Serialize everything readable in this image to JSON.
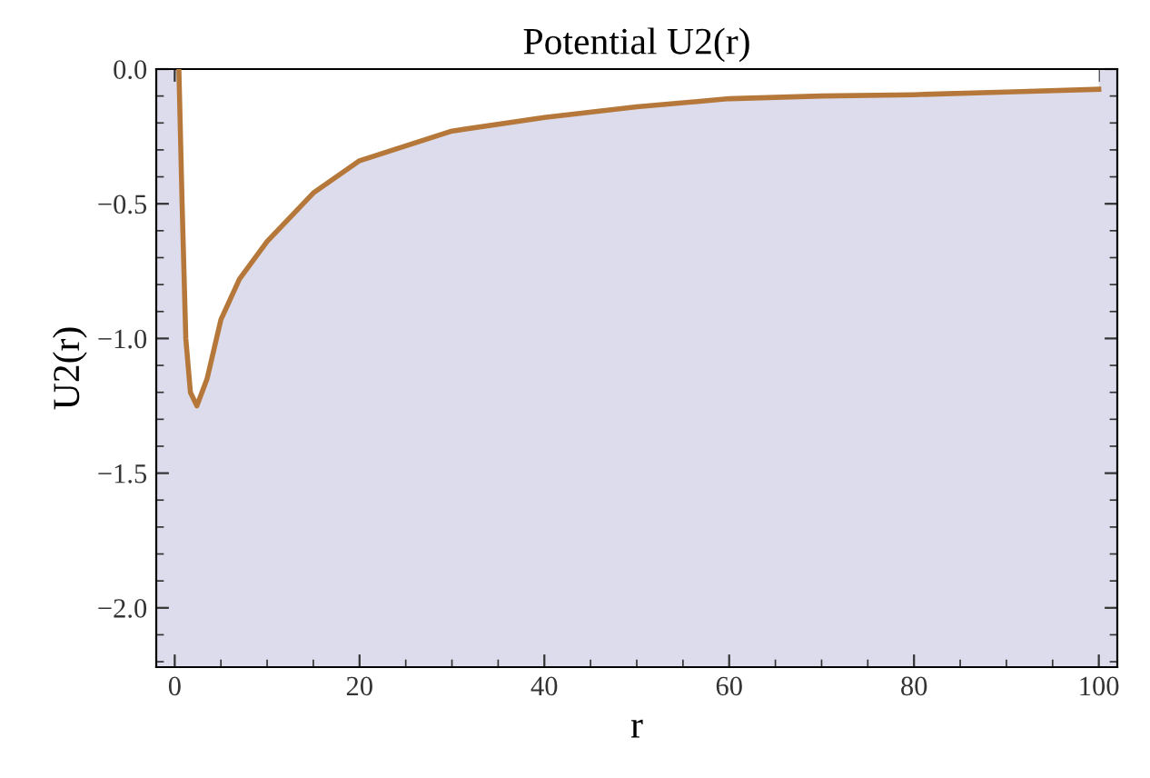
{
  "chart_data": {
    "type": "area",
    "title": "Potential U2(r)",
    "xlabel": "r",
    "ylabel": "U2(r)",
    "x": [
      0.45,
      0.8,
      1.2,
      1.7,
      2.4,
      3.5,
      5,
      7,
      10,
      15,
      20,
      30,
      40,
      50,
      60,
      70,
      80,
      90,
      100
    ],
    "bands": [
      {
        "axis": "y",
        "from": -2.22,
        "to": 0,
        "color": "#dcdcec"
      }
    ],
    "series": [
      {
        "color": "#b5783a",
        "values": [
          0,
          -0.5,
          -1.0,
          -1.2,
          -1.25,
          -1.15,
          -0.93,
          -0.78,
          -0.64,
          -0.46,
          -0.34,
          -0.23,
          -0.18,
          -0.14,
          -0.11,
          -0.1,
          -0.095,
          -0.085,
          -0.075
        ]
      }
    ],
    "xlim": [
      -2,
      102
    ],
    "ylim": [
      -2.22,
      0
    ],
    "xticks": [
      0,
      20,
      40,
      60,
      80,
      100
    ],
    "yticks": [
      {
        "value": 0,
        "label": "0.0"
      },
      {
        "value": -0.5,
        "label": "−0.5"
      },
      {
        "value": -1.0,
        "label": "−1.0"
      },
      {
        "value": -1.5,
        "label": "−1.5"
      },
      {
        "value": -2.0,
        "label": "−2.0"
      }
    ],
    "grid": false,
    "legend": false
  }
}
